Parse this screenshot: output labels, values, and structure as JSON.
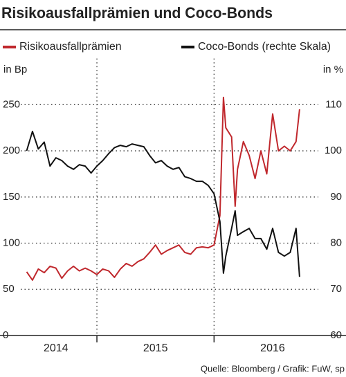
{
  "chart_data": {
    "type": "line",
    "title": "Risikoausfallprämien und Coco-Bonds",
    "y_label": "in Bp",
    "y2_label": "in %",
    "source": "Quelle: Bloomberg / Grafik: FuW, sp",
    "x": [
      2014.4,
      2014.45,
      2014.5,
      2014.55,
      2014.6,
      2014.65,
      2014.7,
      2014.75,
      2014.8,
      2014.85,
      2014.9,
      2014.95,
      2015.0,
      2015.05,
      2015.1,
      2015.15,
      2015.2,
      2015.25,
      2015.3,
      2015.35,
      2015.4,
      2015.45,
      2015.5,
      2015.55,
      2015.6,
      2015.65,
      2015.7,
      2015.75,
      2015.8,
      2015.85,
      2015.9,
      2015.95,
      2016.0,
      2016.05,
      2016.08,
      2016.1,
      2016.15,
      2016.18,
      2016.2,
      2016.25,
      2016.3,
      2016.35,
      2016.4,
      2016.45,
      2016.5,
      2016.55,
      2016.6,
      2016.65,
      2016.7,
      2016.73
    ],
    "xlim": [
      2014.35,
      2016.89
    ],
    "xticks": [
      {
        "value": 2014.65,
        "label": "2014"
      },
      {
        "value": 2015.5,
        "label": "2015"
      },
      {
        "value": 2016.5,
        "label": "2016"
      }
    ],
    "xgrid": [
      2015,
      2016
    ],
    "ylim": [
      0,
      300
    ],
    "yticks": [
      0,
      50,
      100,
      150,
      200,
      250
    ],
    "y2lim": [
      60,
      120
    ],
    "y2ticks": [
      60,
      70,
      80,
      90,
      100,
      110
    ],
    "grid": true,
    "series": [
      {
        "name": "Risikoausfallprämien",
        "color": "#c0282d",
        "values": [
          69,
          60,
          72,
          68,
          75,
          73,
          62,
          70,
          75,
          70,
          73,
          70,
          66,
          72,
          70,
          63,
          72,
          78,
          75,
          80,
          83,
          90,
          98,
          88,
          92,
          95,
          98,
          90,
          88,
          95,
          96,
          95,
          98,
          130,
          258,
          225,
          215,
          140,
          180,
          210,
          195,
          170,
          200,
          175,
          240,
          200,
          205,
          200,
          210,
          245
        ]
      },
      {
        "name": "Coco-Bonds (rechte Skala)",
        "color": "#111111",
        "axis": "y2",
        "values": [
          100,
          104.2,
          100.4,
          101.9,
          96.7,
          98.5,
          97.9,
          96.7,
          96,
          97,
          96.7,
          95.2,
          96.7,
          97.9,
          99.4,
          100.7,
          101.2,
          100.9,
          101.5,
          101.2,
          100.9,
          99,
          97.4,
          97.9,
          96.7,
          96,
          96.4,
          94.4,
          94,
          93.4,
          93.4,
          92.5,
          90.7,
          84.7,
          73.5,
          77.2,
          83.2,
          87,
          81.7,
          82.5,
          83.2,
          81,
          81,
          78.7,
          83.2,
          78,
          77.2,
          78,
          83.2,
          72.7
        ]
      }
    ]
  }
}
